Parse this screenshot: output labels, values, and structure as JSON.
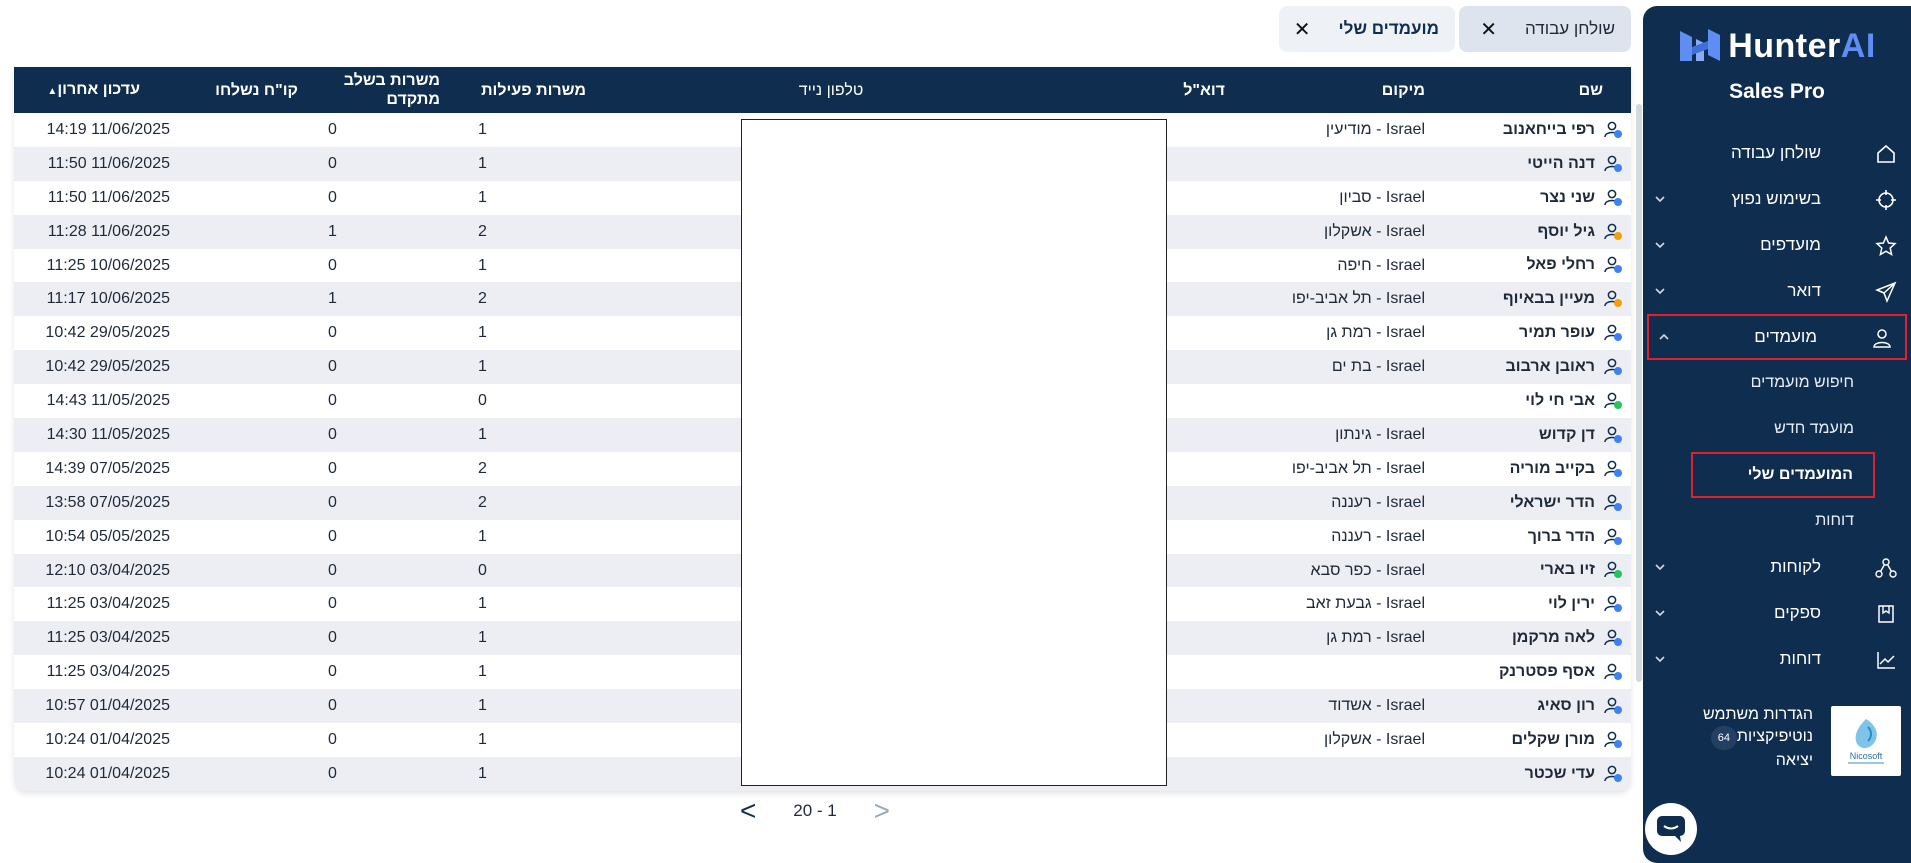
{
  "brand": {
    "name_main": "Hunter",
    "name_accent": "AI",
    "subtitle": "Sales Pro"
  },
  "sidebar": {
    "items": [
      {
        "label": "שולחן עבודה",
        "icon": "home-icon",
        "expandable": false
      },
      {
        "label": "בשימוש נפוץ",
        "icon": "crosshair-icon",
        "expandable": true
      },
      {
        "label": "מועדפים",
        "icon": "star-icon",
        "expandable": true
      },
      {
        "label": "דואר",
        "icon": "send-icon",
        "expandable": true
      },
      {
        "label": "מועמדים",
        "icon": "user-icon",
        "expandable": true,
        "expanded": true
      }
    ],
    "sub_items": [
      {
        "label": "חיפוש מועמדים"
      },
      {
        "label": "מועמד חדש"
      },
      {
        "label": "המועמדים שלי",
        "current": true
      },
      {
        "label": "דוחות"
      }
    ],
    "items_after": [
      {
        "label": "לקוחות",
        "icon": "network-icon",
        "expandable": true
      },
      {
        "label": "ספקים",
        "icon": "bookmark-icon",
        "expandable": true
      },
      {
        "label": "דוחות",
        "icon": "chart-icon",
        "expandable": true
      }
    ],
    "user": {
      "settings": "הגדרות משתמש",
      "notifications": "נוטיפיקציות",
      "notifications_count": "64",
      "logout": "יציאה",
      "company_logo_text": "Nicosoft"
    }
  },
  "tabs": [
    {
      "label": "שולחן עבודה",
      "active": false
    },
    {
      "label": "מועמדים שלי",
      "active": true
    }
  ],
  "table": {
    "headers": {
      "name": "שם",
      "location": "מיקום",
      "email": "דוא\"ל",
      "phone": "טלפון נייד",
      "active_jobs": "משרות פעילות",
      "advanced_jobs": "משרות בשלב מתקדם",
      "cv_sent": "קו\"ח נשלחו",
      "last_update": "עדכון אחרון",
      "sort_indicator": "▲"
    },
    "rows": [
      {
        "name": "רפי בייחאנוב",
        "location": "Israel - מודיעין",
        "active": "1",
        "advanced": "0",
        "updated": "11/06/2025 14:19",
        "badge": "blue"
      },
      {
        "name": "דנה הייטי",
        "location": "",
        "active": "1",
        "advanced": "0",
        "updated": "11/06/2025 11:50",
        "badge": "blue"
      },
      {
        "name": "שני נצר",
        "location": "Israel - סביון",
        "active": "1",
        "advanced": "0",
        "updated": "11/06/2025 11:50",
        "badge": "blue"
      },
      {
        "name": "גיל יוסף",
        "location": "Israel - אשקלון",
        "active": "2",
        "advanced": "1",
        "updated": "11/06/2025 11:28",
        "badge": "orange"
      },
      {
        "name": "רחלי פאל",
        "location": "Israel - חיפה",
        "active": "1",
        "advanced": "0",
        "updated": "10/06/2025 11:25",
        "badge": "blue"
      },
      {
        "name": "מעיין בבאיוף",
        "location": "Israel - תל אביב-יפו",
        "active": "2",
        "advanced": "1",
        "updated": "10/06/2025 11:17",
        "badge": "orange"
      },
      {
        "name": "עופר תמיר",
        "location": "Israel - רמת גן",
        "active": "1",
        "advanced": "0",
        "updated": "29/05/2025 10:42",
        "badge": "blue"
      },
      {
        "name": "ראובן ארבוב",
        "location": "Israel - בת ים",
        "active": "1",
        "advanced": "0",
        "updated": "29/05/2025 10:42",
        "badge": "blue"
      },
      {
        "name": "אבי חי לוי",
        "location": "",
        "active": "0",
        "advanced": "0",
        "updated": "11/05/2025 14:43",
        "badge": "green"
      },
      {
        "name": "דן קדוש",
        "location": "Israel - גינתון",
        "active": "1",
        "advanced": "0",
        "updated": "11/05/2025 14:30",
        "badge": "blue"
      },
      {
        "name": "בקייב מוריה",
        "location": "Israel - תל אביב-יפו",
        "active": "2",
        "advanced": "0",
        "updated": "07/05/2025 14:39",
        "badge": "blue"
      },
      {
        "name": "הדר ישראלי",
        "location": "Israel - רעננה",
        "active": "2",
        "advanced": "0",
        "updated": "07/05/2025 13:58",
        "badge": "blue"
      },
      {
        "name": "הדר ברוך",
        "location": "Israel - רעננה",
        "active": "1",
        "advanced": "0",
        "updated": "05/05/2025 10:54",
        "badge": "blue"
      },
      {
        "name": "זיו בארי",
        "location": "Israel - כפר סבא",
        "active": "0",
        "advanced": "0",
        "updated": "03/04/2025 12:10",
        "badge": "green"
      },
      {
        "name": "ירין לוי",
        "location": "Israel - גבעת זאב",
        "active": "1",
        "advanced": "0",
        "updated": "03/04/2025 11:25",
        "badge": "blue"
      },
      {
        "name": "לאה מרקמן",
        "location": "Israel - רמת גן",
        "active": "1",
        "advanced": "0",
        "updated": "03/04/2025 11:25",
        "badge": "blue"
      },
      {
        "name": "אסף פסטרנק",
        "location": "",
        "active": "1",
        "advanced": "0",
        "updated": "03/04/2025 11:25",
        "badge": "blue"
      },
      {
        "name": "רון סאיג",
        "location": "Israel - אשדוד",
        "active": "1",
        "advanced": "0",
        "updated": "01/04/2025 10:57",
        "badge": "blue"
      },
      {
        "name": "מורן שקלים",
        "location": "Israel - אשקלון",
        "active": "1",
        "advanced": "0",
        "updated": "01/04/2025 10:24",
        "badge": "blue"
      },
      {
        "name": "עדי שכטר",
        "location": "",
        "active": "1",
        "advanced": "0",
        "updated": "01/04/2025 10:24",
        "badge": "blue"
      }
    ]
  },
  "pager": {
    "range": "20 - 1",
    "prev": "<",
    "next": ">"
  },
  "colors": {
    "navy": "#0f2d4e",
    "accent": "#5e8ef2",
    "highlight": "#e0202a",
    "badge_blue": "#3b82f6",
    "badge_orange": "#f59e0b",
    "badge_green": "#22c55e"
  }
}
